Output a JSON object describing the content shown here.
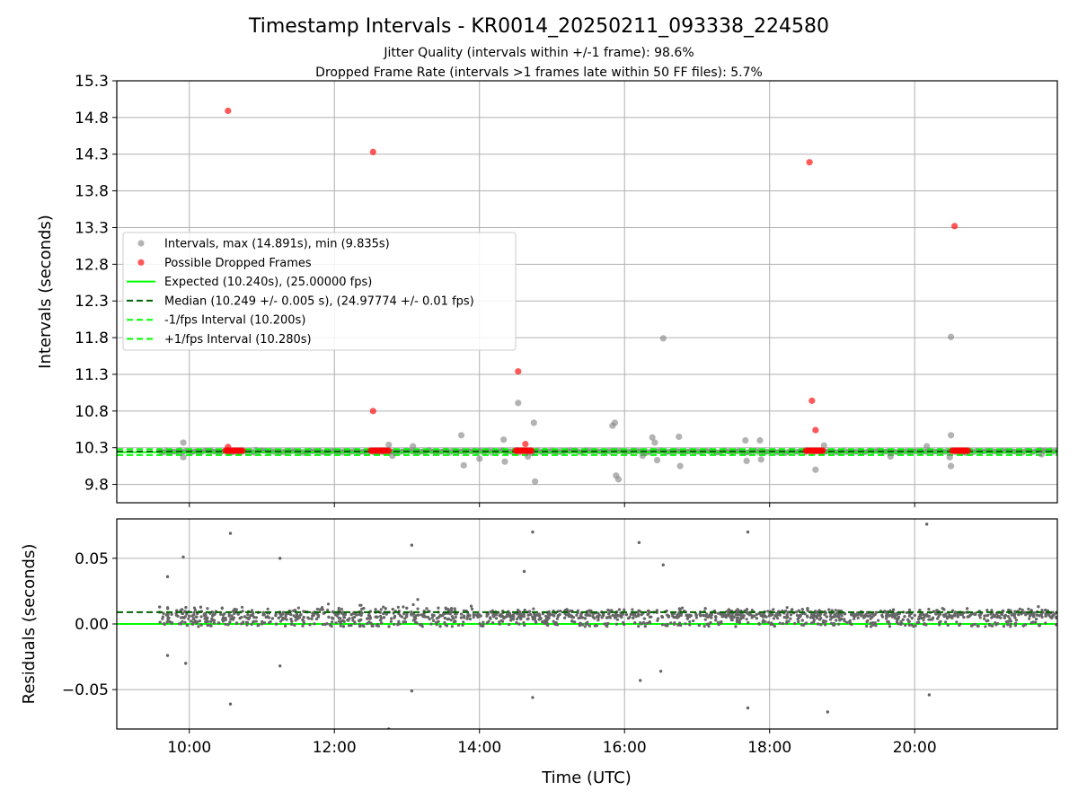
{
  "figure": {
    "title": "Timestamp Intervals - KR0014_20250211_093338_224580",
    "subtitle_1": "Jitter Quality (intervals within +/-1 frame): 98.6%",
    "subtitle_2": "Dropped Frame Rate (intervals >1 frames late within 50 FF files): 5.7%",
    "xlabel": "Time (UTC)"
  },
  "colors": {
    "interval_points": "#808080",
    "dropped_points": "#ff0000",
    "expected_line": "#00ff00",
    "median_line": "#006400",
    "fps_bounds": "#00ff00",
    "residual_points": "#666666",
    "grid": "#b0b0b0"
  },
  "chart_data": [
    {
      "type": "scatter",
      "name": "intervals",
      "ylabel": "Intervals (seconds)",
      "xlim": [
        "09:00",
        "21:58"
      ],
      "ylim": [
        9.55,
        15.3
      ],
      "x_ticks": [
        "10:00",
        "12:00",
        "14:00",
        "16:00",
        "18:00",
        "20:00"
      ],
      "y_ticks": [
        "9.8",
        "10.3",
        "10.8",
        "11.3",
        "11.8",
        "12.3",
        "12.8",
        "13.3",
        "13.8",
        "14.3",
        "14.8",
        "15.3"
      ],
      "grid": true,
      "legend_position": "center-left",
      "legend": [
        "Intervals, max (14.891s), min (9.835s)",
        "Possible Dropped Frames",
        "Expected (10.240s), (25.00000 fps)",
        "Median (10.249 +/- 0.005 s), (24.97774 +/- 0.01 fps)",
        "-1/fps Interval (10.200s)",
        "+1/fps Interval (10.280s)"
      ],
      "lines": {
        "expected": 10.24,
        "median": 10.249,
        "minus_1fps": 10.2,
        "plus_1fps": 10.28
      },
      "band": {
        "from": "09:35",
        "to": "21:58",
        "center": 10.249
      },
      "intervals_outliers": [
        [
          "09:55",
          10.37
        ],
        [
          "09:55",
          10.17
        ],
        [
          "12:45",
          10.34
        ],
        [
          "12:48",
          10.19
        ],
        [
          "13:05",
          10.32
        ],
        [
          "13:45",
          10.47
        ],
        [
          "13:47",
          10.06
        ],
        [
          "14:00",
          10.15
        ],
        [
          "14:20",
          10.41
        ],
        [
          "14:21",
          10.11
        ],
        [
          "14:32",
          10.91
        ],
        [
          "14:40",
          10.18
        ],
        [
          "14:43",
          10.23
        ],
        [
          "14:45",
          10.64
        ],
        [
          "14:46",
          9.84
        ],
        [
          "15:50",
          10.6
        ],
        [
          "15:52",
          10.64
        ],
        [
          "15:53",
          9.92
        ],
        [
          "15:55",
          9.87
        ],
        [
          "16:15",
          10.19
        ],
        [
          "16:23",
          10.44
        ],
        [
          "16:25",
          10.37
        ],
        [
          "16:27",
          10.13
        ],
        [
          "16:32",
          11.79
        ],
        [
          "16:45",
          10.45
        ],
        [
          "16:46",
          10.05
        ],
        [
          "17:40",
          10.4
        ],
        [
          "17:41",
          10.12
        ],
        [
          "17:52",
          10.4
        ],
        [
          "17:53",
          10.14
        ],
        [
          "18:38",
          10.0
        ],
        [
          "18:45",
          10.33
        ],
        [
          "19:40",
          10.18
        ],
        [
          "20:10",
          10.32
        ],
        [
          "20:30",
          11.81
        ],
        [
          "20:30",
          10.47
        ],
        [
          "20:29",
          10.17
        ],
        [
          "20:30",
          10.05
        ],
        [
          "21:45",
          10.21
        ]
      ],
      "dropped_frames": [
        [
          "10:32",
          14.891
        ],
        [
          "12:32",
          14.33
        ],
        [
          "18:33",
          14.19
        ],
        [
          "20:33",
          13.32
        ],
        [
          "14:32",
          11.34
        ],
        [
          "12:32",
          10.8
        ],
        [
          "18:35",
          10.94
        ],
        [
          "18:38",
          10.54
        ],
        [
          "14:38",
          10.35
        ],
        [
          "10:32",
          10.31
        ]
      ],
      "dropped_clusters": [
        {
          "from": "10:30",
          "to": "10:44",
          "y": 10.26
        },
        {
          "from": "12:30",
          "to": "12:45",
          "y": 10.26
        },
        {
          "from": "14:30",
          "to": "14:43",
          "y": 10.26
        },
        {
          "from": "18:30",
          "to": "18:44",
          "y": 10.26
        },
        {
          "from": "20:31",
          "to": "20:44",
          "y": 10.26
        }
      ]
    },
    {
      "type": "scatter",
      "name": "residuals",
      "ylabel": "Residuals (seconds)",
      "xlabel": "Time (UTC)",
      "xlim": [
        "09:00",
        "21:58"
      ],
      "ylim": [
        -0.08,
        0.08
      ],
      "x_ticks": [
        "10:00",
        "12:00",
        "14:00",
        "16:00",
        "18:00",
        "20:00"
      ],
      "y_ticks": [
        "0.05",
        "0.00",
        "−0.05"
      ],
      "y_tick_values": [
        0.05,
        0.0,
        -0.05
      ],
      "grid": true,
      "lines": {
        "zero": 0.0,
        "median_offset": 0.009
      },
      "cloud": {
        "from": "09:35",
        "to": "21:58",
        "center": 0.007,
        "spread": 0.01
      },
      "outliers": [
        [
          "09:42",
          0.036
        ],
        [
          "09:55",
          0.051
        ],
        [
          "09:42",
          -0.024
        ],
        [
          "09:57",
          -0.03
        ],
        [
          "10:34",
          0.069
        ],
        [
          "10:34",
          -0.061
        ],
        [
          "11:15",
          0.05
        ],
        [
          "11:15",
          -0.032
        ],
        [
          "13:04",
          0.06
        ],
        [
          "13:04",
          -0.051
        ],
        [
          "12:45",
          -0.08
        ],
        [
          "14:44",
          0.07
        ],
        [
          "14:37",
          0.04
        ],
        [
          "14:44",
          -0.056
        ],
        [
          "16:12",
          0.062
        ],
        [
          "16:13",
          -0.043
        ],
        [
          "16:32",
          0.045
        ],
        [
          "16:30",
          -0.036
        ],
        [
          "17:42",
          0.07
        ],
        [
          "17:42",
          -0.064
        ],
        [
          "18:48",
          -0.067
        ],
        [
          "20:10",
          0.076
        ],
        [
          "20:12",
          -0.054
        ]
      ]
    }
  ]
}
